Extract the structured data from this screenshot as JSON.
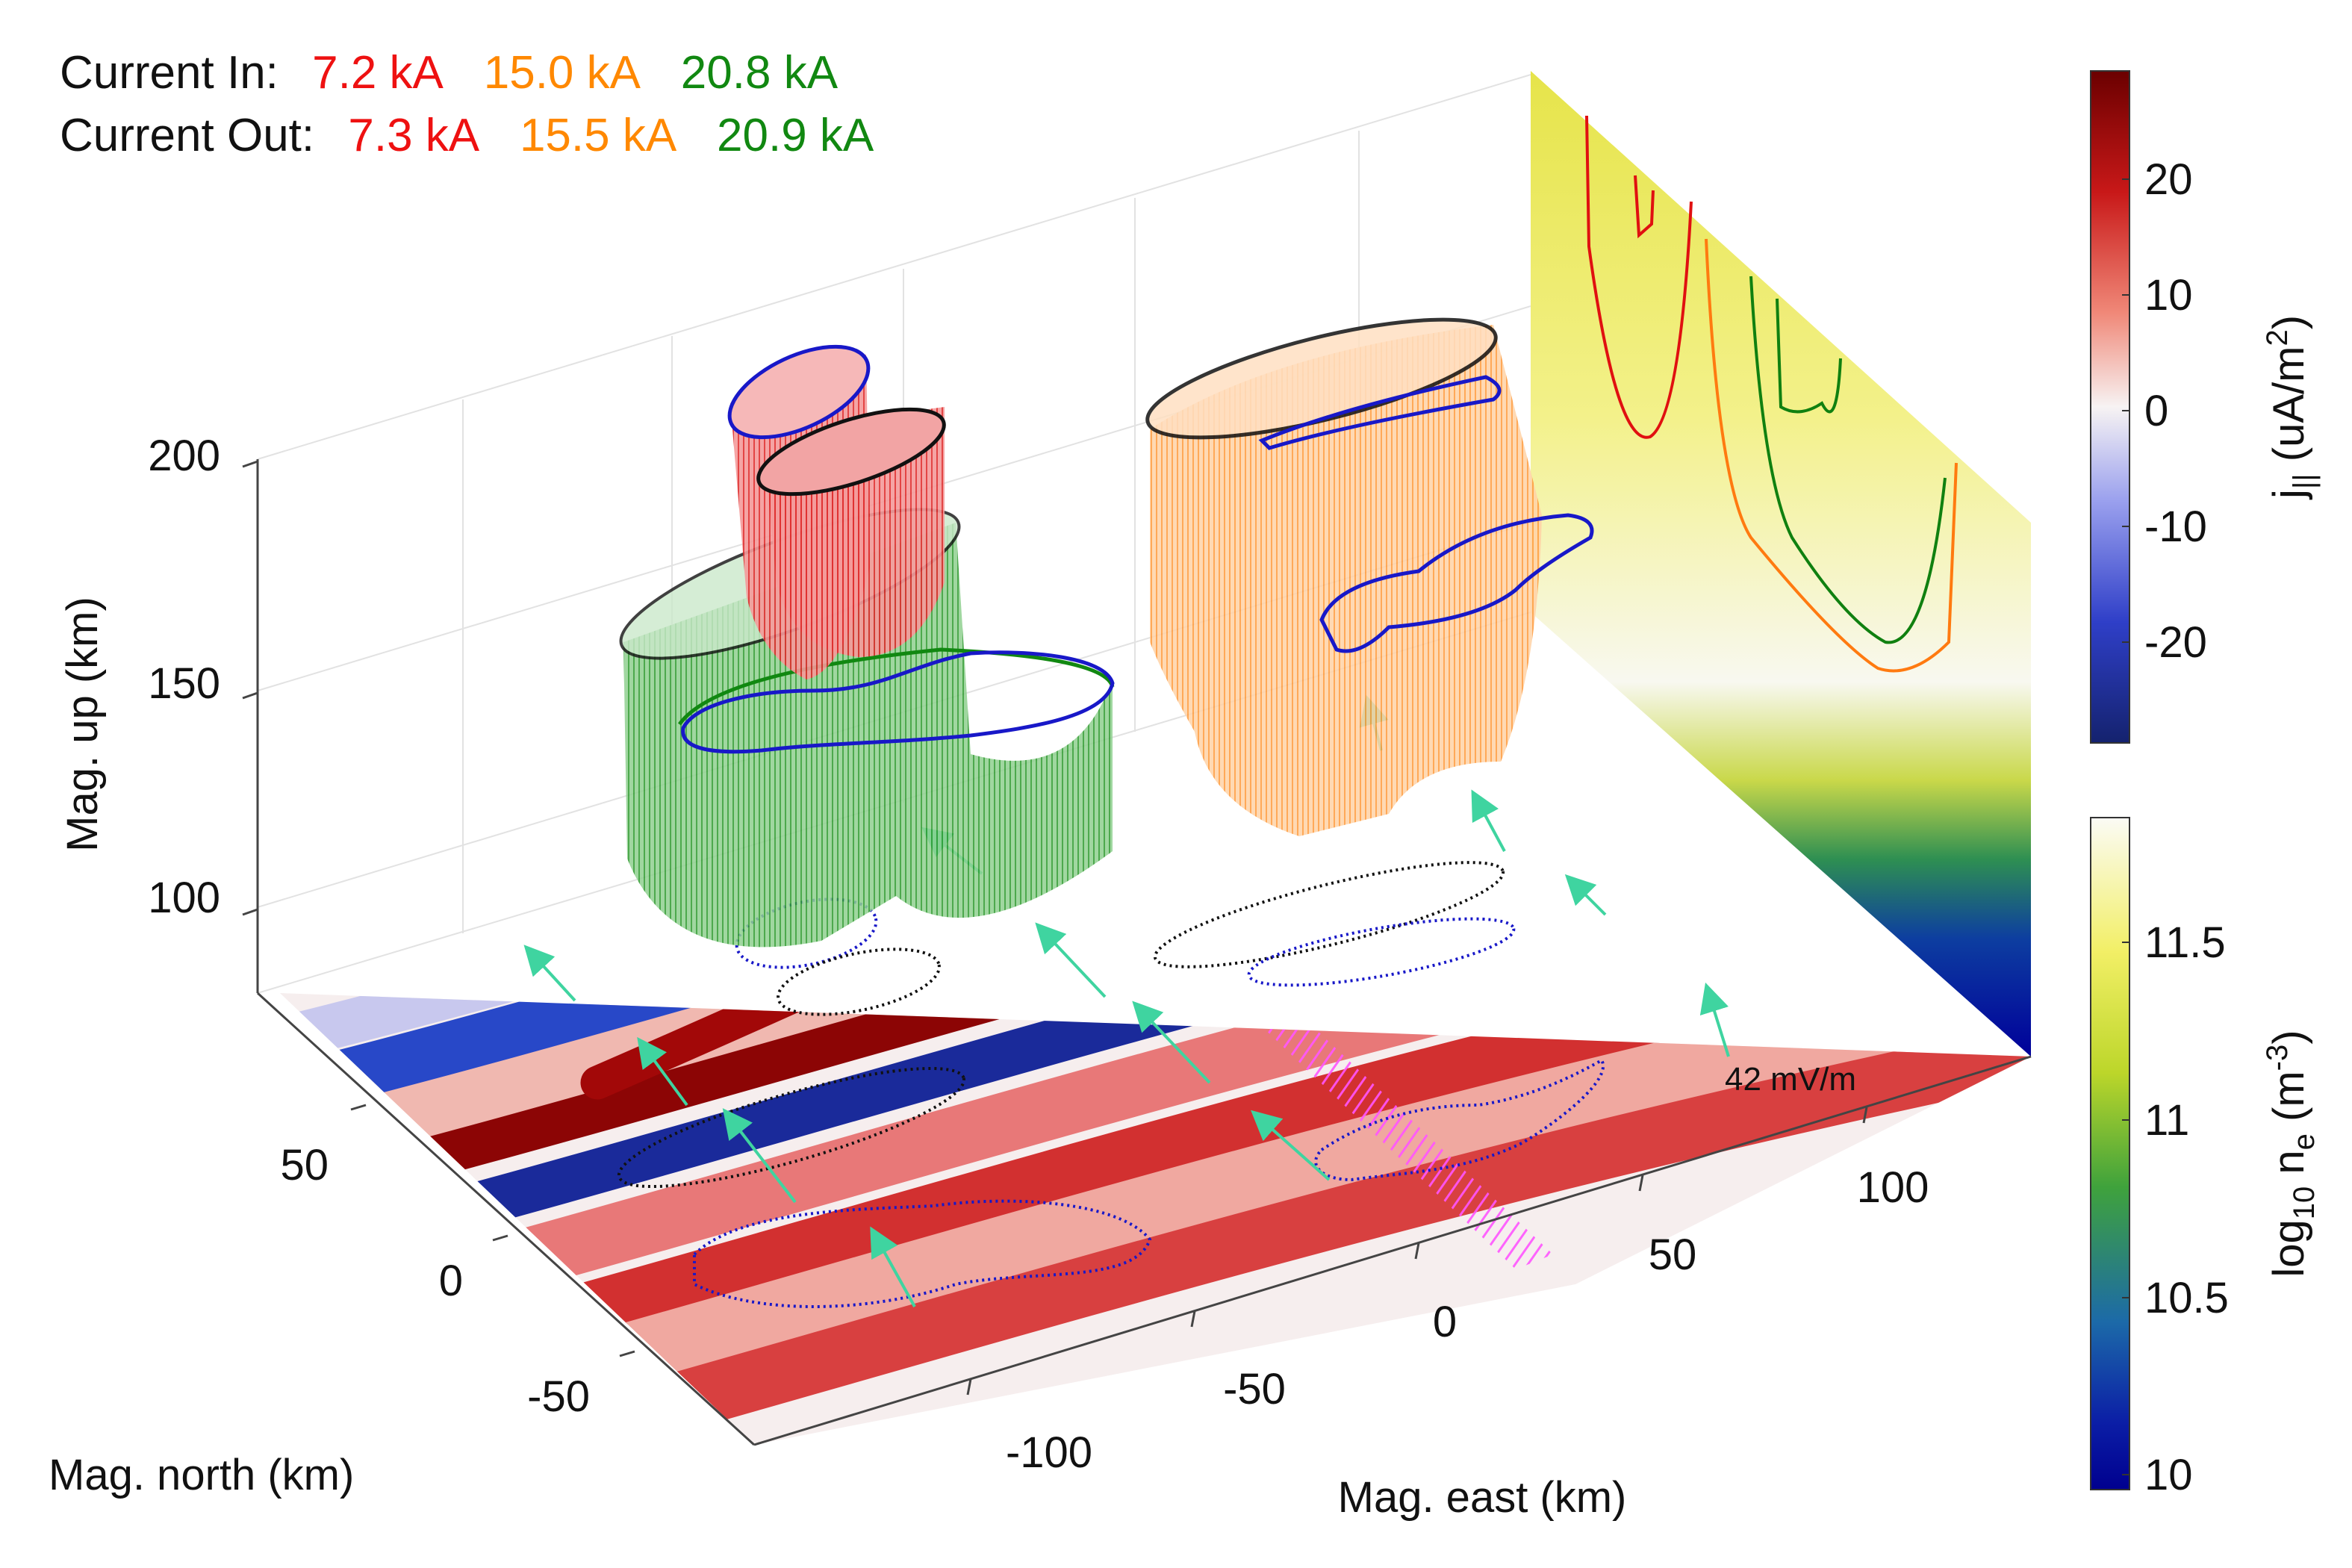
{
  "legend": {
    "row1": {
      "label": "Current In:",
      "values": [
        "7.2 kA",
        "15.0 kA",
        "20.8 kA"
      ]
    },
    "row2": {
      "label": "Current Out:",
      "values": [
        "7.3 kA",
        "15.5 kA",
        "20.9 kA"
      ]
    },
    "colors": [
      "#ee1111",
      "#ff8800",
      "#118811"
    ]
  },
  "axes": {
    "up_label": "Mag. up (km)",
    "north_label": "Mag. north (km)",
    "east_label": "Mag. east (km)",
    "up_ticks": [
      "200",
      "150",
      "100"
    ],
    "north_ticks": [
      "50",
      "0",
      "-50"
    ],
    "east_ticks": [
      "-100",
      "-50",
      "0",
      "50",
      "100"
    ]
  },
  "annotation": {
    "efield_scale": "42 mV/m"
  },
  "colorbar_j": {
    "label_main": "j",
    "label_sub": "||",
    "label_units": " (uA/m",
    "label_sup": "2",
    "label_close": ")",
    "ticks": [
      "20",
      "10",
      "0",
      "-10",
      "-20"
    ],
    "colors": [
      "#6b0000",
      "#c81818",
      "#f08878",
      "#f7f3f3",
      "#9aa0ee",
      "#2f3fc8",
      "#14226e"
    ]
  },
  "colorbar_ne": {
    "label_pre": "log",
    "label_sub10": "10",
    "label_mid": " n",
    "label_sube": "e",
    "label_units": " (m",
    "label_sup": "-3",
    "label_close": ")",
    "ticks": [
      "11.5",
      "11",
      "10.5",
      "10"
    ],
    "colors": [
      "#fbfbf5",
      "#f2ef66",
      "#bcd62a",
      "#3fa23c",
      "#1c6aa8",
      "#0b1ea6",
      "#00008f"
    ]
  }
}
